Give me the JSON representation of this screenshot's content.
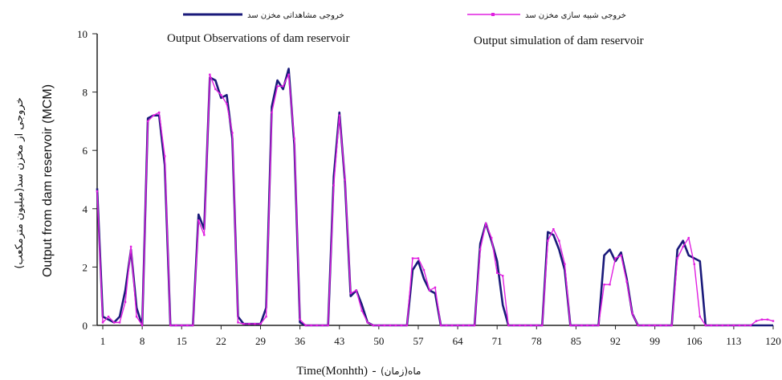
{
  "chart_data": {
    "type": "line",
    "xlabel_en": "Time(Monhth)",
    "xlabel_sep": "-",
    "xlabel_fa": "ماه(زمان)",
    "ylabel_en": "Output from dam reservoir (MCM)",
    "ylabel_fa": "خروجی از مخزن سد(میلیون مترمکعب)",
    "x_ticks": [
      1,
      8,
      15,
      22,
      29,
      36,
      43,
      50,
      57,
      64,
      71,
      78,
      85,
      92,
      99,
      106,
      113,
      120
    ],
    "y_ticks": [
      0,
      2,
      4,
      6,
      8,
      10
    ],
    "xlim": [
      0,
      120
    ],
    "ylim": [
      0,
      10
    ],
    "grid": false,
    "legend_position": "top",
    "series": [
      {
        "name": "خروجی مشاهداتی مخزن سد",
        "name_en": "Output Observations of dam reservoir",
        "color": "#1a1a7a",
        "values": [
          4.7,
          0.3,
          0.2,
          0.1,
          0.3,
          1.2,
          2.6,
          0.6,
          0,
          7.1,
          7.2,
          7.2,
          5.5,
          0,
          0,
          0,
          0,
          0,
          3.8,
          3.3,
          8.5,
          8.4,
          7.8,
          7.9,
          6.4,
          0.3,
          0.05,
          0.05,
          0.05,
          0.05,
          0.6,
          7.5,
          8.4,
          8.1,
          8.8,
          6.2,
          0.1,
          0,
          0,
          0,
          0,
          0,
          5.1,
          7.3,
          4.9,
          1,
          1.2,
          0.7,
          0.1,
          0,
          0,
          0,
          0,
          0,
          0,
          0,
          1.9,
          2.2,
          1.6,
          1.2,
          1.1,
          0,
          0,
          0,
          0,
          0,
          0,
          0,
          2.8,
          3.5,
          2.9,
          2.2,
          0.7,
          0,
          0,
          0,
          0,
          0,
          0,
          0,
          3.2,
          3.1,
          2.6,
          1.9,
          0,
          0,
          0,
          0,
          0,
          0,
          2.4,
          2.6,
          2.2,
          2.5,
          1.6,
          0.4,
          0,
          0,
          0,
          0,
          0,
          0,
          0,
          2.6,
          2.9,
          2.4,
          2.3,
          2.2,
          0,
          0,
          0,
          0,
          0,
          0,
          0,
          0,
          0,
          0,
          0,
          0,
          0
        ]
      },
      {
        "name": "خروجی شبیه سازی مخزن سد",
        "name_en": "Output simulation of dam reservoir",
        "color": "#e020e0",
        "values": [
          4.6,
          0.1,
          0.3,
          0.1,
          0.1,
          0.8,
          2.7,
          0.3,
          0,
          7.0,
          7.2,
          7.3,
          5.8,
          0,
          0,
          0,
          0,
          0,
          3.6,
          3.1,
          8.6,
          8.1,
          7.9,
          7.6,
          6.6,
          0.1,
          0.05,
          0.05,
          0.05,
          0.05,
          0.3,
          7.3,
          8.2,
          8.2,
          8.6,
          6.4,
          0.2,
          0,
          0,
          0,
          0,
          0,
          4.8,
          7.2,
          5.0,
          1.1,
          1.2,
          0.5,
          0.1,
          0,
          0,
          0,
          0,
          0,
          0,
          0,
          2.3,
          2.3,
          1.9,
          1.2,
          1.3,
          0,
          0,
          0,
          0,
          0,
          0,
          0,
          2.6,
          3.5,
          3.0,
          1.8,
          1.7,
          0,
          0,
          0,
          0,
          0,
          0,
          0,
          2.9,
          3.3,
          2.9,
          2.1,
          0,
          0,
          0,
          0,
          0,
          0,
          1.4,
          1.4,
          2.3,
          2.4,
          1.5,
          0.4,
          0,
          0,
          0,
          0,
          0,
          0,
          0,
          2.3,
          2.7,
          3.0,
          2.1,
          0.3,
          0,
          0,
          0,
          0,
          0,
          0,
          0,
          0,
          0,
          0.15,
          0.2,
          0.2,
          0.15
        ]
      }
    ]
  }
}
